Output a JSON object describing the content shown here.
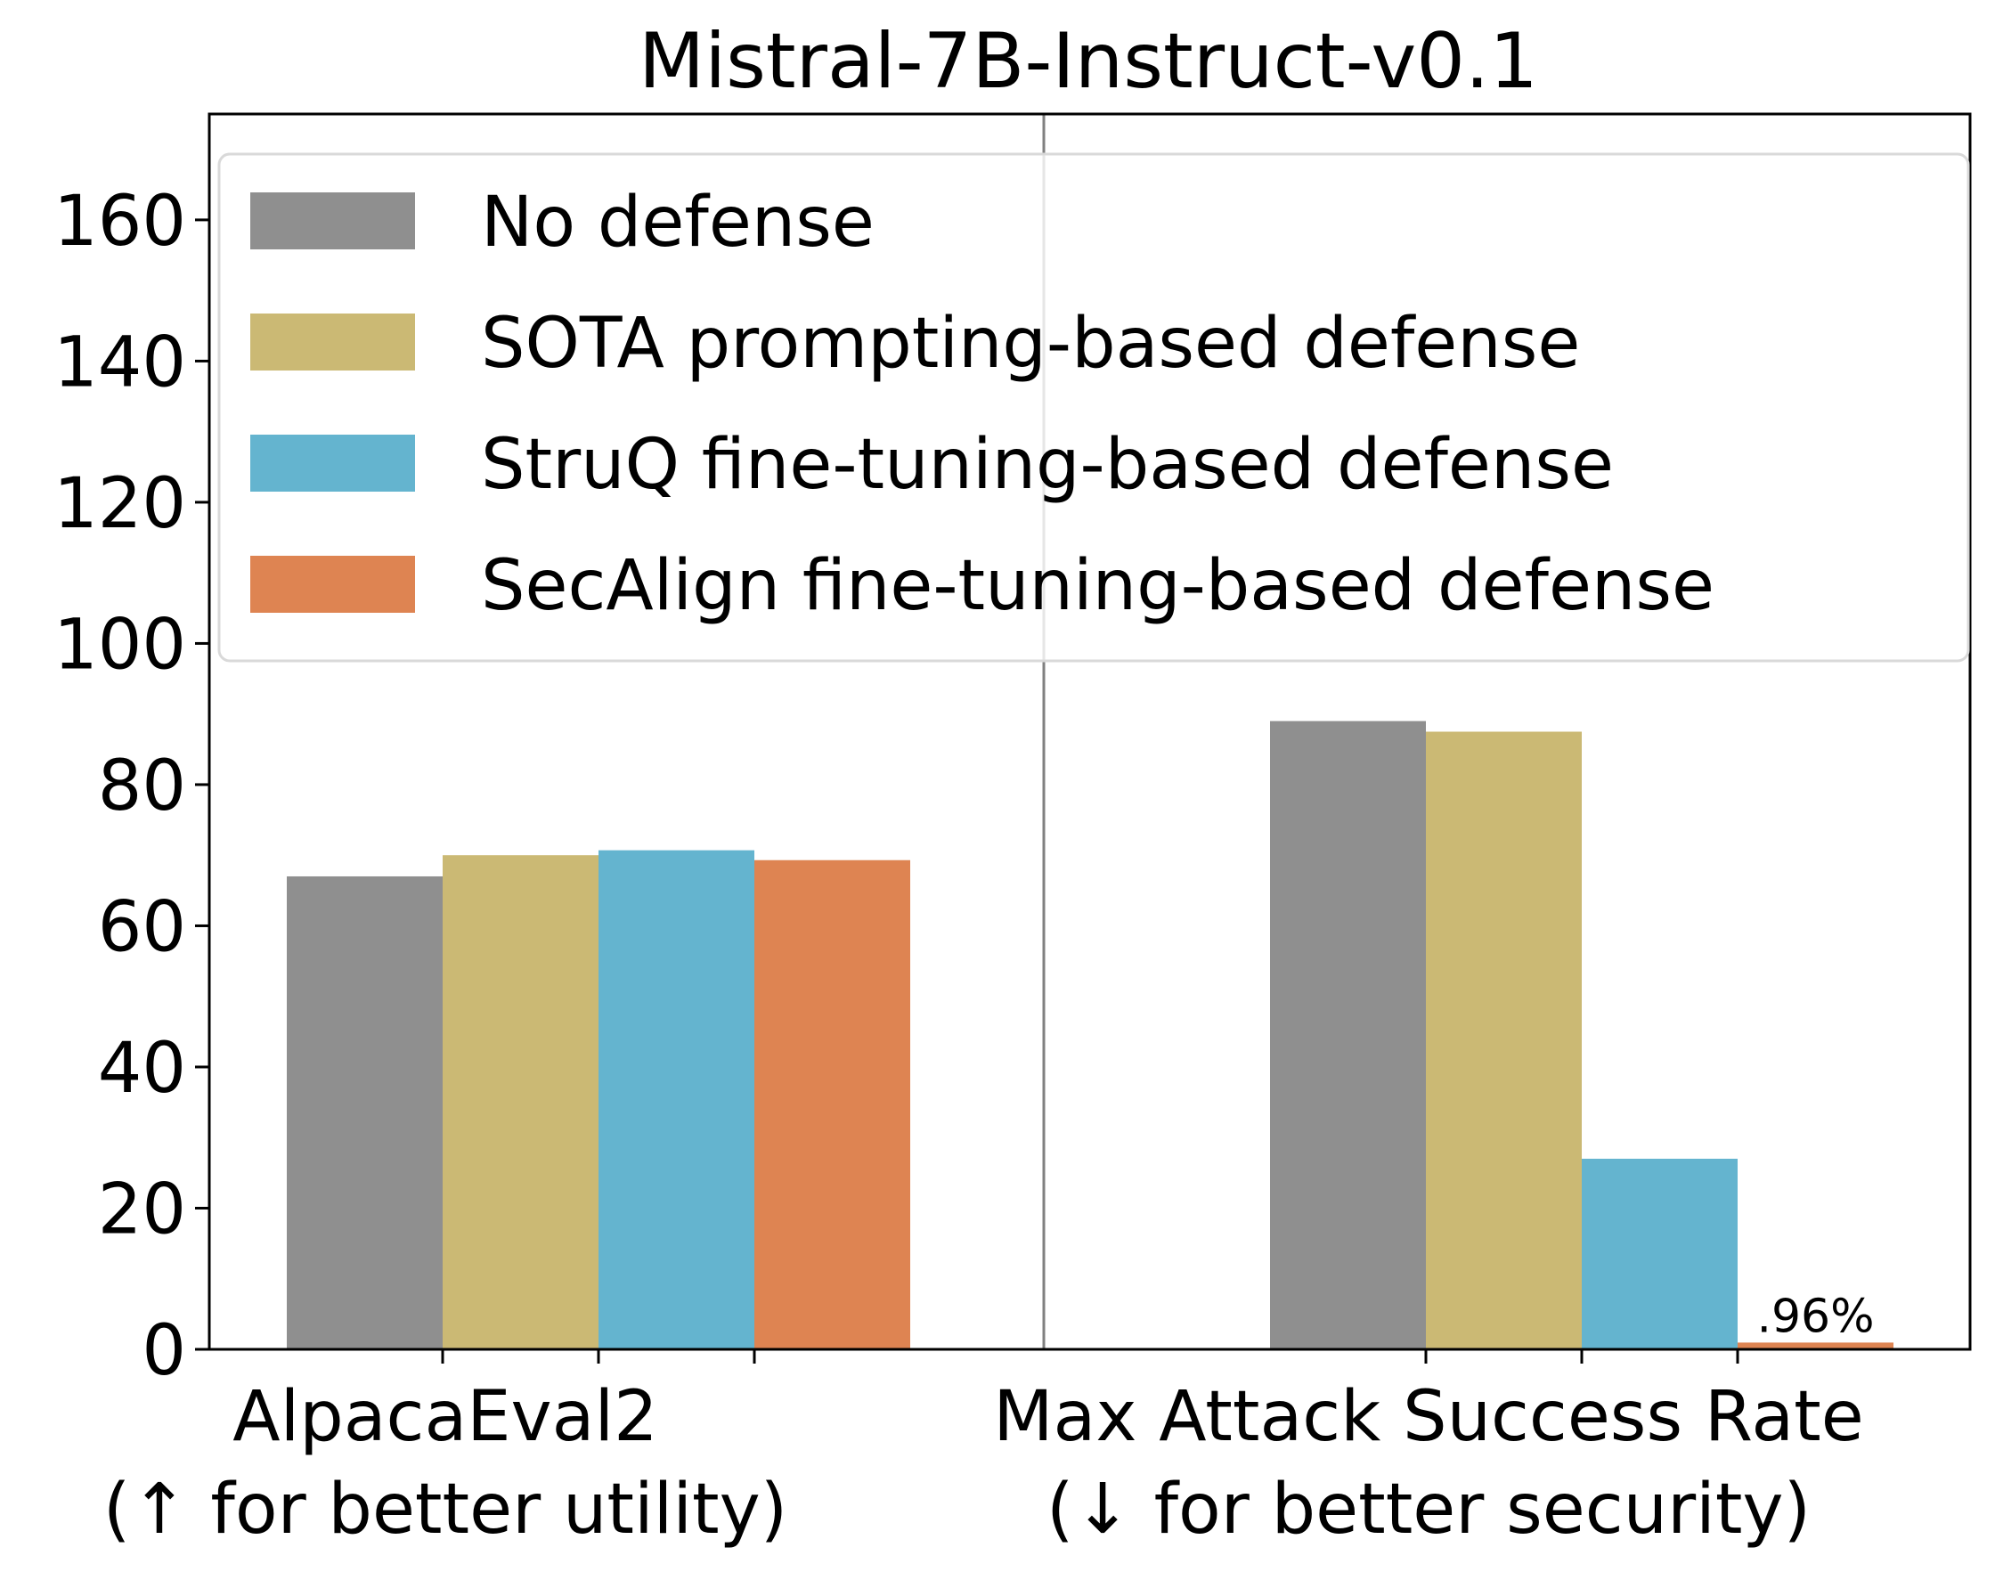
{
  "chart_data": {
    "type": "bar",
    "title": "Mistral-7B-Instruct-v0.1",
    "categories": [
      [
        "AlpacaEval2",
        "(↑ for better utility)"
      ],
      [
        "Max Attack Success Rate",
        "(↓ for better security)"
      ]
    ],
    "series": [
      {
        "name": "No defense",
        "color": "#8f8f8f",
        "values": [
          67.0,
          89.0
        ]
      },
      {
        "name": "SOTA prompting-based defense",
        "color": "#cbb974",
        "values": [
          70.0,
          87.5
        ]
      },
      {
        "name": "StruQ fine-tuning-based defense",
        "color": "#64b4cf",
        "values": [
          70.7,
          27.0
        ]
      },
      {
        "name": "SecAlign fine-tuning-based defense",
        "color": "#de8452",
        "values": [
          69.3,
          0.96
        ]
      }
    ],
    "data_labels": [
      {
        "series": 3,
        "category": 1,
        "text": ".96%"
      }
    ],
    "ylim": [
      0,
      175
    ],
    "yticks": [
      "0",
      "20",
      "40",
      "60",
      "80",
      "100",
      "120",
      "140",
      "160"
    ],
    "xlabel": "",
    "ylabel": "",
    "grid": false,
    "legend_position": "top",
    "separator_between_categories": true
  }
}
